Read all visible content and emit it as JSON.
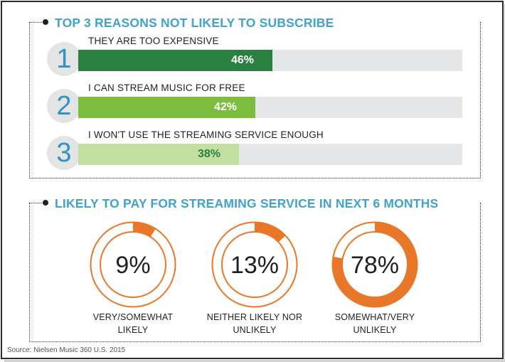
{
  "section1": {
    "title": "TOP 3 REASONS NOT LIKELY TO SUBSCRIBE"
  },
  "section2": {
    "title": "LIKELY TO PAY FOR STREAMING SERVICE IN NEXT 6 MONTHS"
  },
  "source": "Source: Nielsen Music 360 U.S. 2015",
  "colors": {
    "title_blue": "#3fa2cf",
    "bar_dark_green": "#2a8040",
    "bar_mid_green": "#7cbd3f",
    "bar_light_green": "#c3dea1",
    "orange": "#e8772a",
    "track_gray": "#e6e7e8"
  },
  "chart_data": [
    {
      "type": "bar",
      "title": "TOP 3 REASONS NOT LIKELY TO SUBSCRIBE",
      "categories": [
        "THEY ARE TOO EXPENSIVE",
        "I CAN STREAM MUSIC FOR FREE",
        "I WON'T USE THE STREAMING SERVICE ENOUGH"
      ],
      "ranks": [
        "1",
        "2",
        "3"
      ],
      "values": [
        46,
        42,
        38
      ],
      "value_labels": [
        "46%",
        "42%",
        "38%"
      ],
      "unit": "%",
      "xlim": [
        0,
        100
      ],
      "grid": false
    },
    {
      "type": "pie",
      "title": "LIKELY TO PAY FOR STREAMING SERVICE IN NEXT 6 MONTHS",
      "categories": [
        "VERY/SOMEWHAT LIKELY",
        "NEITHER LIKELY NOR UNLIKELY",
        "SOMEWHAT/VERY UNLIKELY"
      ],
      "values": [
        9,
        13,
        78
      ],
      "value_labels": [
        "9%",
        "13%",
        "78%"
      ],
      "label_lines": [
        [
          "VERY/SOMEWHAT",
          "LIKELY"
        ],
        [
          "NEITHER LIKELY NOR",
          "UNLIKELY"
        ],
        [
          "SOMEWHAT/VERY",
          "UNLIKELY"
        ]
      ],
      "unit": "%"
    }
  ]
}
